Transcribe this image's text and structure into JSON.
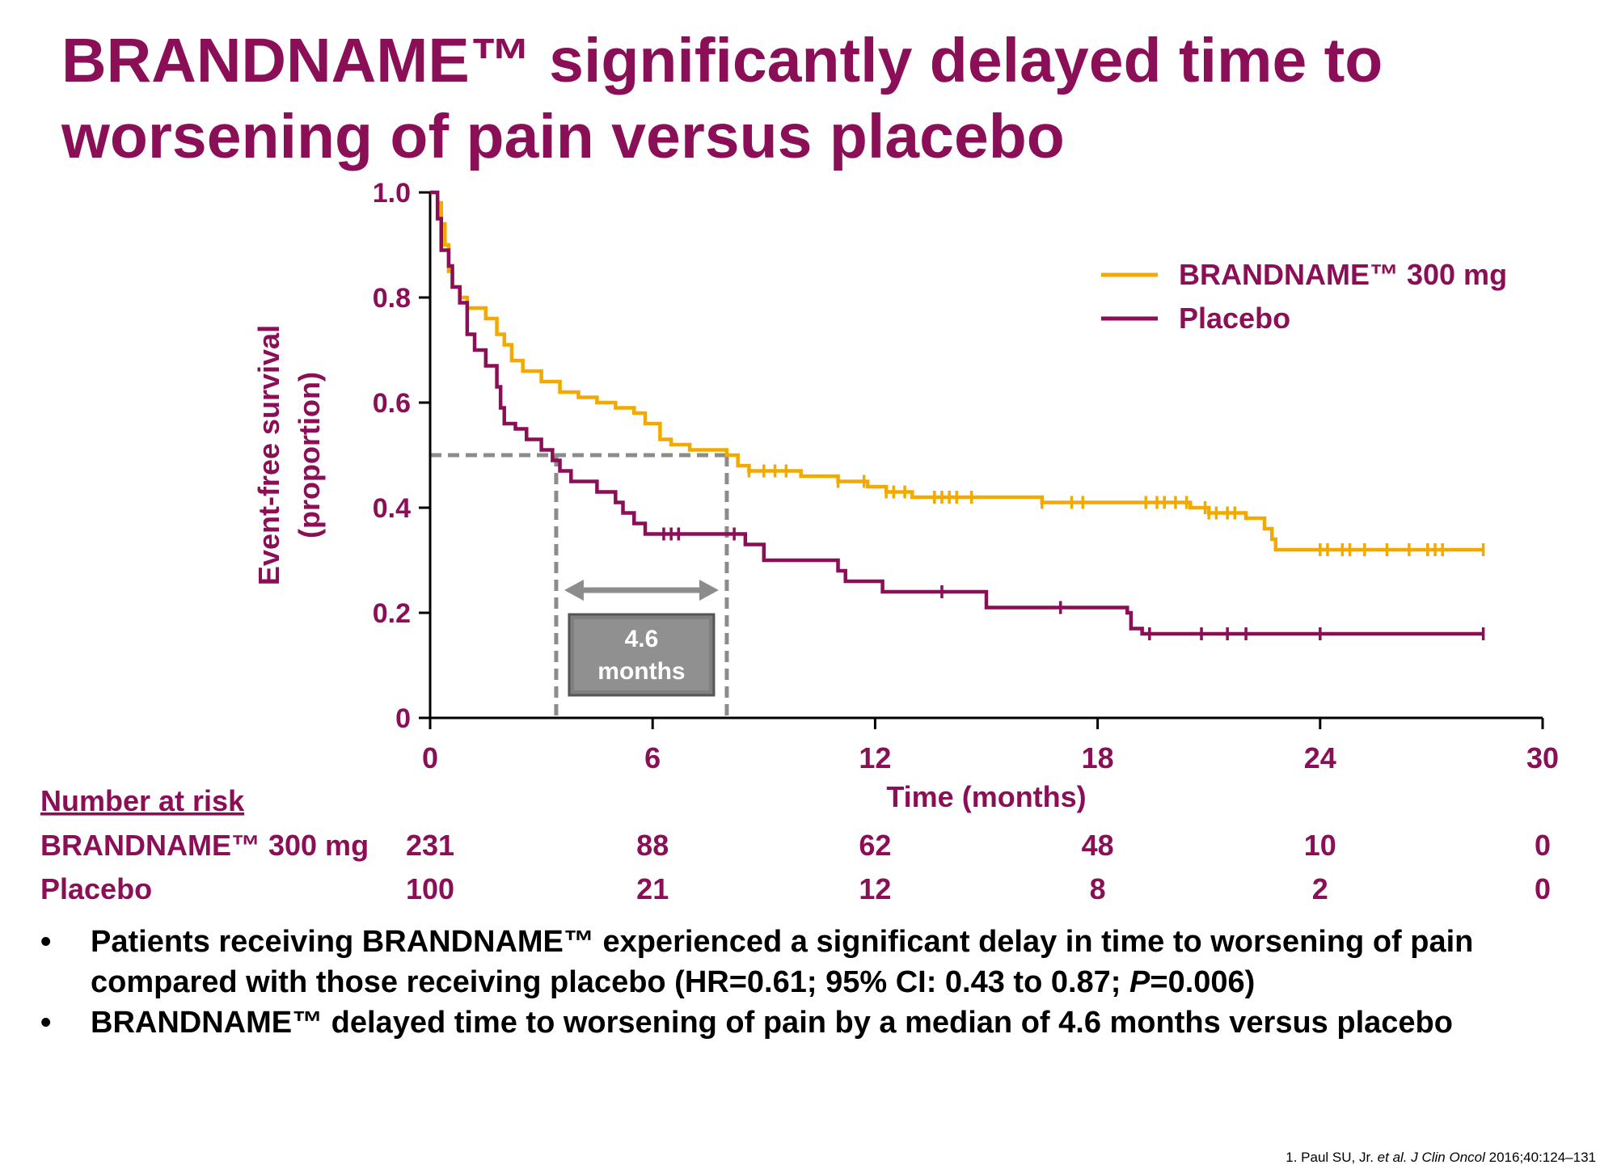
{
  "slide": {
    "title": "BRANDNAME™ significantly delayed time to worsening of pain versus placebo",
    "bullets": [
      {
        "text_a": "Patients receiving BRANDNAME™ experienced a significant delay in time to worsening of pain compared with those receiving placebo (HR=0.61; 95% CI: 0.43 to 0.87; ",
        "text_italic": "P",
        "text_b": "=0.006)"
      },
      {
        "text_a": "BRANDNAME™ delayed time to worsening of pain by a median of 4.6 months versus placebo",
        "text_italic": "",
        "text_b": ""
      }
    ],
    "bullet_char": "•",
    "citation_pre": "1. Paul SU, Jr. ",
    "citation_italic": "et al. J Clin Oncol",
    "citation_post": " 2016;40:124–131"
  },
  "colors": {
    "accent": "#8b0f57",
    "drug": "#f2a900",
    "placebo": "#8b0f57",
    "median_line": "#8c8c8c"
  },
  "chart_data": {
    "type": "line",
    "xlabel": "Time (months)",
    "ylabel_line1": "Event-free survival",
    "ylabel_line2": "(proportion)",
    "xlim": [
      0,
      30
    ],
    "ylim": [
      0,
      1
    ],
    "xticks": [
      0,
      6,
      12,
      18,
      24,
      30
    ],
    "xtick_labels": [
      "0",
      "6",
      "12",
      "18",
      "24",
      "30"
    ],
    "yticks": [
      0,
      0.2,
      0.4,
      0.6,
      0.8,
      1.0
    ],
    "ytick_labels": [
      "0",
      "0.2",
      "0.4",
      "0.6",
      "0.8",
      "1.0"
    ],
    "legend_position": "top-right",
    "median_marker": {
      "y": 0.5,
      "x_placebo": 3.4,
      "x_drug": 8.0,
      "label_line1": "4.6",
      "label_line2": "months"
    },
    "series": [
      {
        "name": "BRANDNAME™ 300 mg",
        "color": "#f2a900",
        "steps": [
          [
            0,
            1.0
          ],
          [
            0.2,
            0.98
          ],
          [
            0.3,
            0.94
          ],
          [
            0.4,
            0.9
          ],
          [
            0.5,
            0.85
          ],
          [
            0.6,
            0.82
          ],
          [
            0.8,
            0.8
          ],
          [
            1.0,
            0.78
          ],
          [
            1.5,
            0.76
          ],
          [
            1.8,
            0.73
          ],
          [
            2.0,
            0.71
          ],
          [
            2.2,
            0.68
          ],
          [
            2.5,
            0.66
          ],
          [
            3.0,
            0.64
          ],
          [
            3.5,
            0.62
          ],
          [
            4.0,
            0.61
          ],
          [
            4.5,
            0.6
          ],
          [
            5.0,
            0.59
          ],
          [
            5.5,
            0.58
          ],
          [
            5.8,
            0.56
          ],
          [
            6.2,
            0.53
          ],
          [
            6.5,
            0.52
          ],
          [
            7.0,
            0.51
          ],
          [
            8.0,
            0.5
          ],
          [
            8.3,
            0.48
          ],
          [
            8.6,
            0.47
          ],
          [
            10.0,
            0.46
          ],
          [
            11.0,
            0.45
          ],
          [
            11.8,
            0.44
          ],
          [
            12.3,
            0.43
          ],
          [
            13.0,
            0.42
          ],
          [
            16.5,
            0.41
          ],
          [
            20.5,
            0.4
          ],
          [
            21.0,
            0.39
          ],
          [
            22.0,
            0.38
          ],
          [
            22.5,
            0.36
          ],
          [
            22.7,
            0.34
          ],
          [
            22.8,
            0.32
          ],
          [
            28.4,
            0.32
          ]
        ],
        "censors": [
          8.6,
          9.0,
          9.3,
          9.6,
          11.0,
          11.7,
          12.3,
          12.5,
          12.8,
          13.6,
          13.8,
          14.0,
          14.2,
          14.6,
          16.5,
          17.3,
          17.6,
          19.3,
          19.6,
          19.8,
          20.1,
          20.4,
          20.9,
          21.0,
          21.2,
          21.5,
          21.7,
          24.0,
          24.2,
          24.6,
          24.8,
          25.2,
          25.8,
          26.4,
          26.9,
          27.1,
          27.3,
          28.4
        ]
      },
      {
        "name": "Placebo",
        "color": "#8b0f57",
        "steps": [
          [
            0,
            1.0
          ],
          [
            0.2,
            0.95
          ],
          [
            0.3,
            0.89
          ],
          [
            0.5,
            0.86
          ],
          [
            0.6,
            0.82
          ],
          [
            0.8,
            0.79
          ],
          [
            1.0,
            0.73
          ],
          [
            1.2,
            0.7
          ],
          [
            1.5,
            0.67
          ],
          [
            1.8,
            0.63
          ],
          [
            1.9,
            0.59
          ],
          [
            2.0,
            0.56
          ],
          [
            2.3,
            0.55
          ],
          [
            2.6,
            0.53
          ],
          [
            3.0,
            0.51
          ],
          [
            3.3,
            0.49
          ],
          [
            3.5,
            0.47
          ],
          [
            3.8,
            0.45
          ],
          [
            4.5,
            0.43
          ],
          [
            5.0,
            0.41
          ],
          [
            5.2,
            0.39
          ],
          [
            5.5,
            0.37
          ],
          [
            5.8,
            0.35
          ],
          [
            8.5,
            0.33
          ],
          [
            9.0,
            0.3
          ],
          [
            11.0,
            0.28
          ],
          [
            11.2,
            0.26
          ],
          [
            12.2,
            0.24
          ],
          [
            15.0,
            0.21
          ],
          [
            18.8,
            0.2
          ],
          [
            18.9,
            0.17
          ],
          [
            19.2,
            0.16
          ],
          [
            28.4,
            0.16
          ]
        ],
        "censors": [
          6.3,
          6.5,
          6.7,
          8.2,
          13.8,
          17.0,
          19.4,
          20.8,
          21.5,
          22.0,
          24.0,
          28.4
        ]
      }
    ],
    "at_risk": {
      "heading": "Number at risk",
      "rows": [
        {
          "label": "BRANDNAME™ 300 mg",
          "values": [
            "231",
            "88",
            "62",
            "48",
            "10",
            "0"
          ]
        },
        {
          "label": "Placebo",
          "values": [
            "100",
            "21",
            "12",
            "8",
            "2",
            "0"
          ]
        }
      ]
    }
  }
}
